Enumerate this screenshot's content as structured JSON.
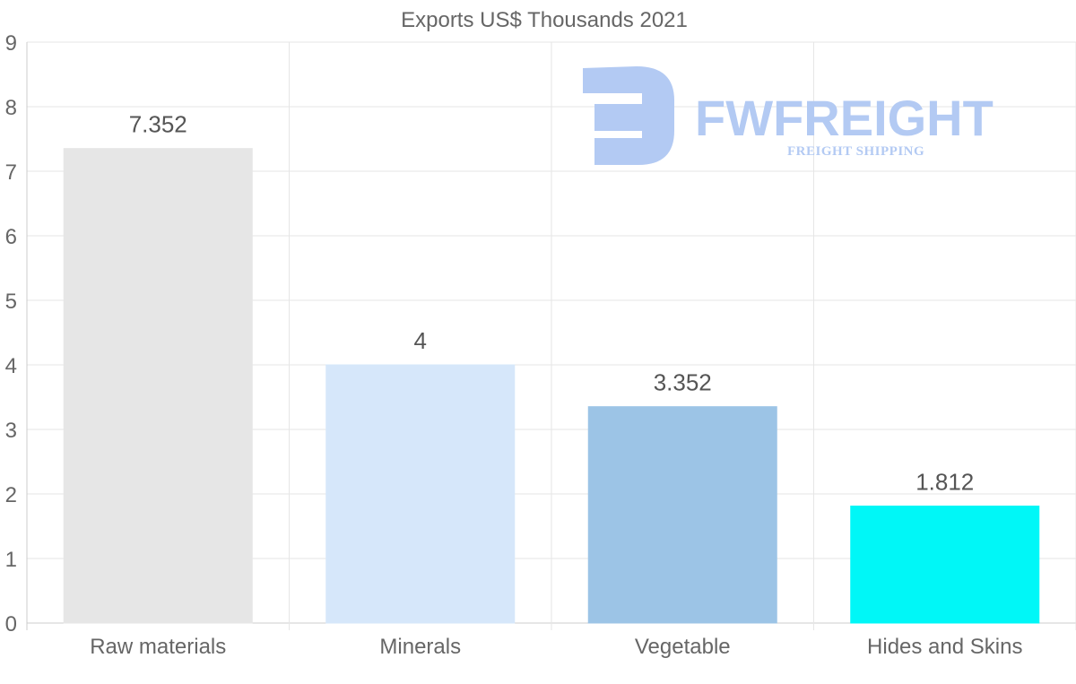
{
  "chart_data": {
    "type": "bar",
    "title": "Exports US$ Thousands 2021",
    "categories": [
      "Raw materials",
      "Minerals",
      "Vegetable",
      "Hides and Skins"
    ],
    "values": [
      7.352,
      4,
      3.352,
      1.812
    ],
    "value_labels": [
      "7.352",
      "4",
      "3.352",
      "1.812"
    ],
    "bar_colors": [
      "#e6e6e6",
      "#d6e7fa",
      "#9cc4e6",
      "#00f7f7"
    ],
    "ylim": [
      0,
      9
    ],
    "yticks": [
      0,
      1,
      2,
      3,
      4,
      5,
      6,
      7,
      8,
      9
    ],
    "xlabel": "",
    "ylabel": "",
    "grid": true,
    "legend": "none"
  },
  "watermark": {
    "brand": "FWFREIGHT",
    "tagline": "FREIGHT SHIPPING",
    "color": "#b3caf3"
  }
}
